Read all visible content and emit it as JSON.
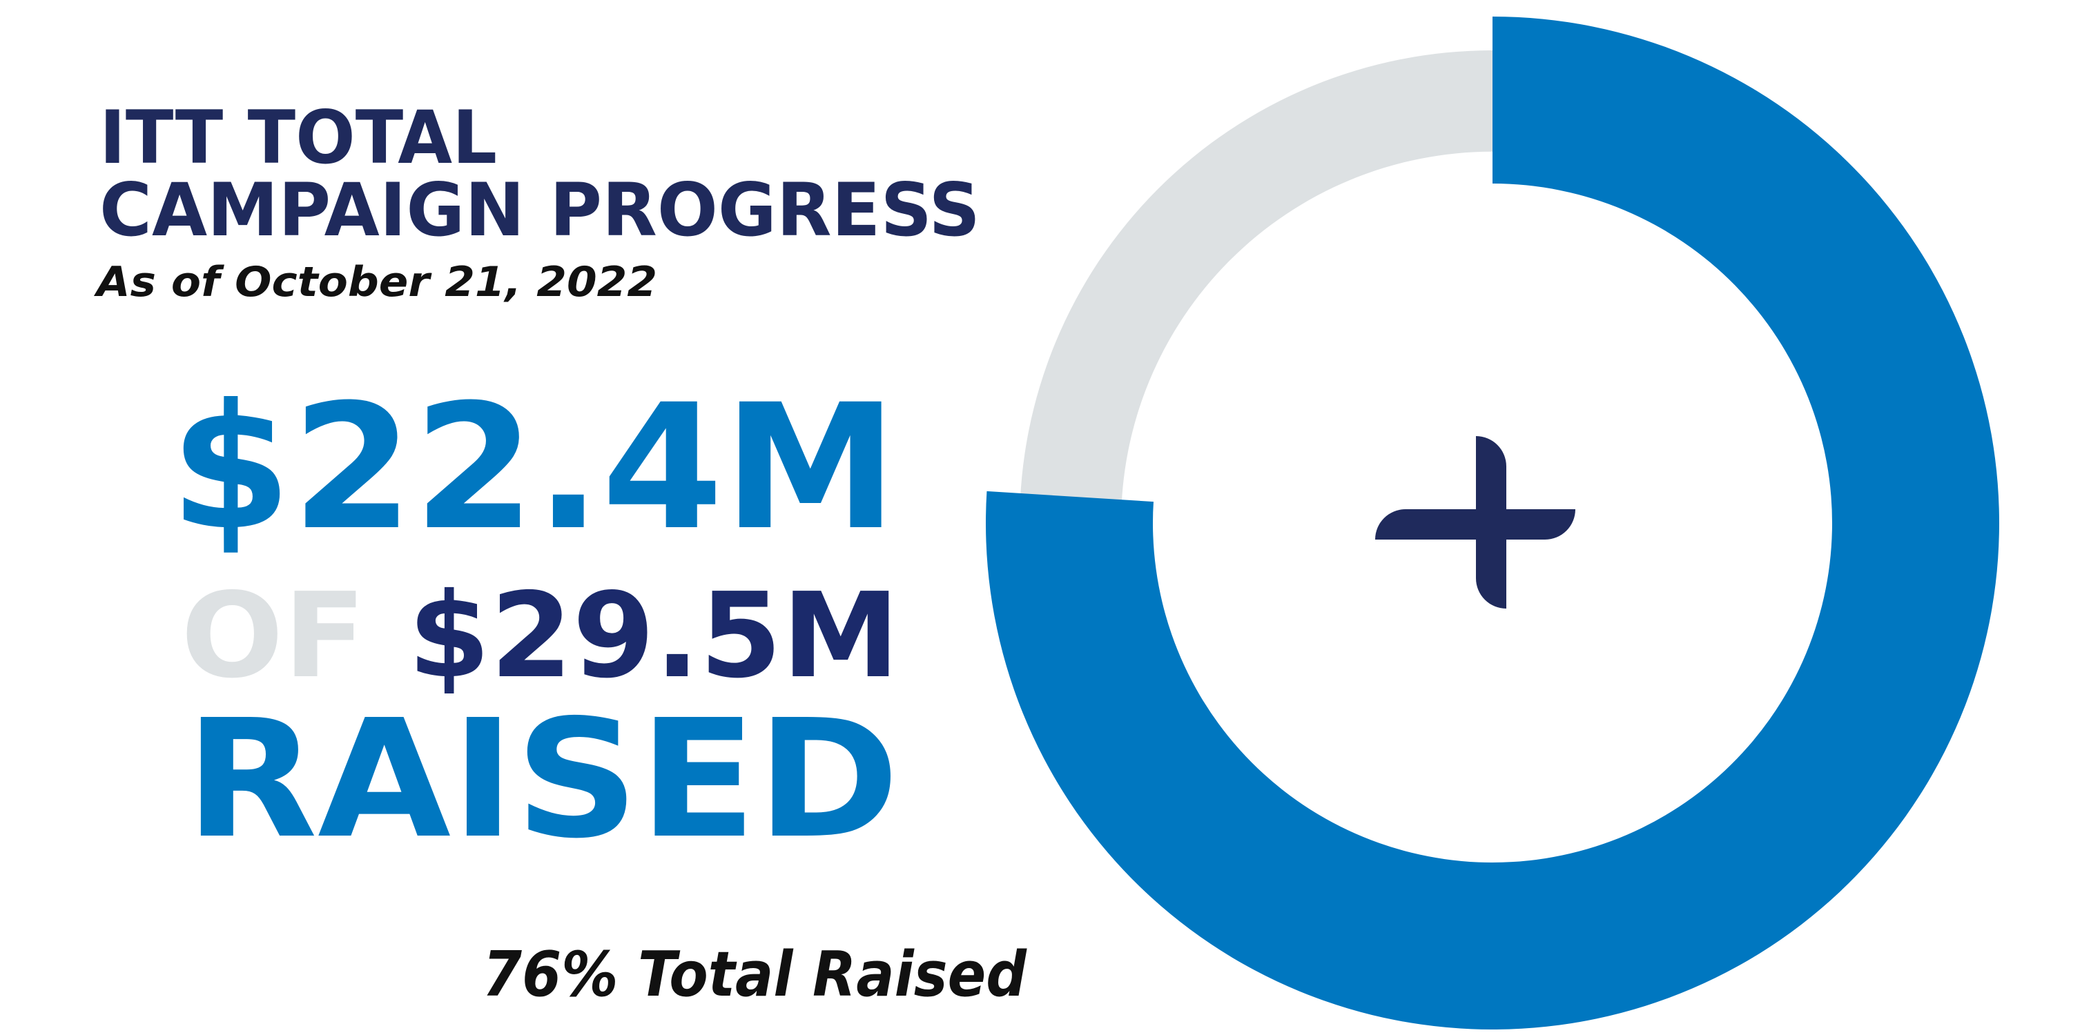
{
  "chart_data": {
    "type": "donut",
    "title": [
      "ITT TOTAL",
      "CAMPAIGN PROGRESS"
    ],
    "subtitle": "As of October 21, 2022",
    "raised": "$22.4M",
    "of": "OF",
    "goal": "$29.5M",
    "raised_label": "RAISED",
    "values": [
      76
    ],
    "value_labels": [
      "76% Total Raised"
    ],
    "color": "#0077c0",
    "remainder_color": "#dde1e3"
  }
}
